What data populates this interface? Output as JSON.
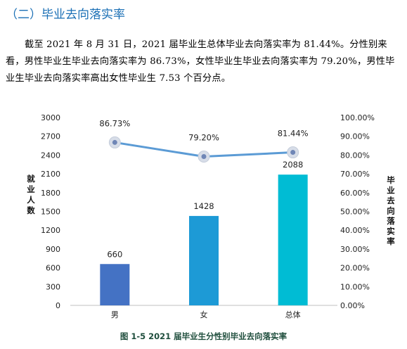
{
  "section_title": "（二）毕业去向落实率",
  "paragraph": "截至 2021 年 8 月 31 日，2021 届毕业生总体毕业去向落实率为 81.44%。分性别来看，男性毕业生毕业去向落实率为 86.73%，女性毕业生毕业去向落实率为 79.20%，男性毕业生毕业去向落实率高出女性毕业生 7.53 个百分点。",
  "caption": "图 1-5 2021 届毕业生分性别毕业去向落实率",
  "colors": {
    "bar_male": "#4472c4",
    "bar_female": "#1d9ad6",
    "bar_total": "#00bcd4",
    "line": "#5b9bd5"
  },
  "chart_data": {
    "type": "bar",
    "categories": [
      "男",
      "女",
      "总体"
    ],
    "series": [
      {
        "name": "就业人数",
        "values": [
          660,
          1428,
          2088
        ],
        "axis": "left"
      },
      {
        "name": "毕业去向落实率",
        "type": "line",
        "values": [
          86.73,
          79.2,
          81.44
        ],
        "labels": [
          "86.73%",
          "79.20%",
          "81.44%"
        ],
        "axis": "right"
      }
    ],
    "ylabel": "就业人数",
    "y2label": "毕业去向落实率",
    "ylim": [
      0,
      3000
    ],
    "yticks": [
      "0",
      "300",
      "600",
      "900",
      "1200",
      "1500",
      "1800",
      "2100",
      "2400",
      "2700",
      "3000"
    ],
    "y2lim": [
      0,
      100
    ],
    "y2ticks": [
      "0.00%",
      "10.00%",
      "20.00%",
      "30.00%",
      "40.00%",
      "50.00%",
      "60.00%",
      "70.00%",
      "80.00%",
      "90.00%",
      "100.00%"
    ],
    "grid": false,
    "legend": "none"
  }
}
